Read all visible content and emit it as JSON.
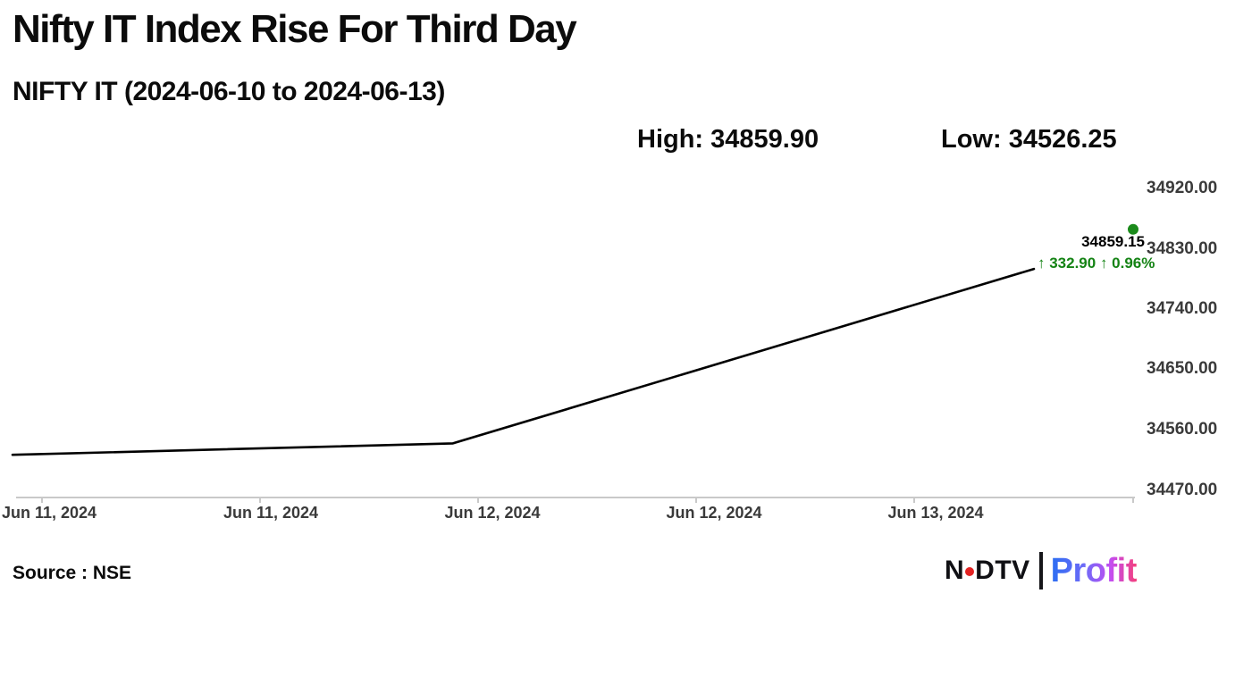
{
  "header": {
    "title": "Nifty IT Index Rise For Third Day",
    "subtitle": "NIFTY IT (2024-06-10 to 2024-06-13)",
    "high_label": "High: 34859.90",
    "low_label": "Low: 34526.25"
  },
  "annotation": {
    "price": "34859.15",
    "change": "↑ 332.90 ↑ 0.96%"
  },
  "footer": {
    "source": "Source : NSE",
    "logo": {
      "ndtv_left": "N",
      "ndtv_right": "DTV",
      "profit": "Profit"
    }
  },
  "colors": {
    "line": "#000000",
    "dot_green": "#1b8a1b",
    "change_green": "#148314",
    "axis_gray": "#c9c9c9",
    "tick_text_gray": "#3a3a3a",
    "ndtv_red": "#e32222"
  },
  "chart_data": {
    "type": "line",
    "title": "NIFTY IT",
    "date_range_start": "2024-06-10",
    "date_range_end": "2024-06-13",
    "high": 34859.9,
    "low": 34526.25,
    "last": 34859.15,
    "change": 332.9,
    "change_pct": 0.96,
    "grid": false,
    "legend": false,
    "ylim": [
      34460,
      34940
    ],
    "y_tick_labels": [
      "34920.00",
      "34830.00",
      "34740.00",
      "34650.00",
      "34560.00",
      "34470.00"
    ],
    "y_tick_values": [
      34920,
      34830,
      34740,
      34650,
      34560,
      34470
    ],
    "x_tick_labels": [
      "Jun 11, 2024",
      "Jun 11, 2024",
      "Jun 12, 2024",
      "Jun 12, 2024",
      "Jun 13, 2024"
    ],
    "series": [
      {
        "name": "NIFTY IT",
        "dot_on_last": true,
        "points": [
          [
            0.0,
            34523
          ],
          [
            0.393,
            34540
          ],
          [
            0.9115,
            34800
          ],
          [
            1.0,
            34859.15
          ]
        ]
      }
    ]
  }
}
